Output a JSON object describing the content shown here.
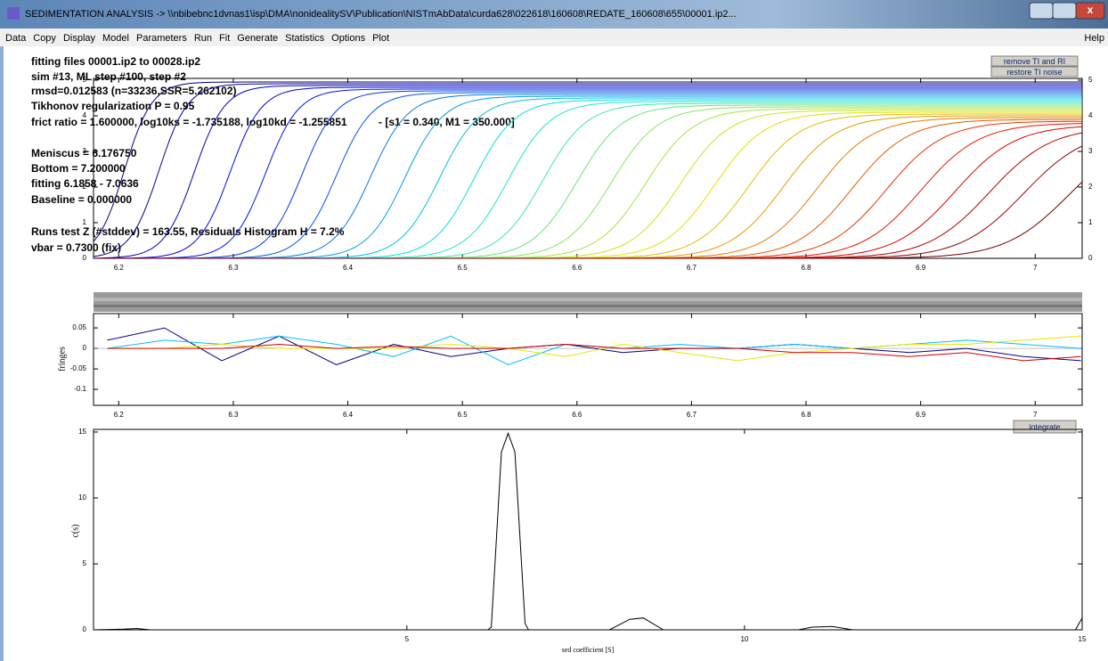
{
  "window": {
    "title": "SEDIMENTATION ANALYSIS -> \\\\nbibebnc1dvnas1\\isp\\DMA\\nonidealitySV\\Publication\\NISTmAbData\\curda628\\022618\\160608\\REDATE_160608\\655\\00001.ip2...",
    "menu": [
      "Data",
      "Copy",
      "Display",
      "Model",
      "Parameters",
      "Run",
      "Fit",
      "Generate",
      "Statistics",
      "Options",
      "Plot"
    ],
    "help": "Help"
  },
  "info": [
    "fitting files 00001.ip2 to 00028.ip2",
    "sim #13, ML step #100, step #2",
    "rmsd=0.012583 (n=33236,SSR=5.262102)",
    "Tikhonov regularization P = 0.95",
    "frict ratio = 1.600000, log10ks = -1.735188, log10kd = -1.255851",
    "- [s1 = 0.340, M1 = 350.000]",
    "Meniscus = 6.176750",
    "Bottom = 7.200000",
    "fitting 6.1858 - 7.0636",
    "Baseline = 0.000000",
    "Runs test Z (#stddev) = 163.55, Residuals Histogram H = 7.2%",
    "vbar = 0.7300 (fix)"
  ],
  "buttons": [
    "remove TI and RI",
    "restore TI noise",
    "integrate"
  ],
  "data_plot": {
    "type": "line",
    "colormap": "jet",
    "xlim": [
      6.178,
      7.041
    ],
    "ylim": [
      0,
      5.05
    ],
    "xticks": [
      6.2,
      6.3,
      6.4,
      6.5,
      6.6,
      6.7,
      6.8,
      6.9,
      7
    ],
    "yticks": [
      0,
      1,
      2,
      3,
      4,
      5
    ],
    "midpoints": [
      6.205,
      6.235,
      6.266,
      6.297,
      6.328,
      6.36,
      6.39,
      6.42,
      6.45,
      6.48,
      6.51,
      6.54,
      6.57,
      6.6,
      6.63,
      6.66,
      6.69,
      6.72,
      6.75,
      6.78,
      6.81,
      6.84,
      6.87,
      6.9,
      6.93,
      6.96,
      6.99,
      7.03
    ],
    "plateaus": [
      4.95,
      4.9,
      4.85,
      4.8,
      4.75,
      4.7,
      4.65,
      4.6,
      4.55,
      4.5,
      4.45,
      4.4,
      4.35,
      4.3,
      4.25,
      4.2,
      4.15,
      4.1,
      4.05,
      4,
      3.95,
      3.9,
      3.85,
      3.8,
      3.75,
      3.7,
      3.65,
      3.6
    ]
  },
  "residuals_plot": {
    "type": "line",
    "ylabel": "fringes",
    "xlim": [
      6.178,
      7.041
    ],
    "ylim": [
      -0.139,
      0.085
    ],
    "xticks": [
      6.2,
      6.3,
      6.4,
      6.5,
      6.6,
      6.7,
      6.8,
      6.9,
      7
    ],
    "yticks": [
      0.05,
      0,
      -0.05,
      -0.1
    ],
    "x": [
      6.19,
      6.24,
      6.29,
      6.34,
      6.39,
      6.44,
      6.49,
      6.54,
      6.59,
      6.64,
      6.69,
      6.74,
      6.79,
      6.84,
      6.89,
      6.94,
      6.99,
      7.04
    ],
    "series": [
      {
        "color": "#00008b",
        "values": [
          0.02,
          0.05,
          -0.03,
          0.03,
          -0.04,
          0.01,
          -0.02,
          0,
          0.01,
          -0.01,
          0,
          0,
          0.01,
          0,
          -0.01,
          0,
          -0.02,
          -0.03
        ]
      },
      {
        "color": "#00bfff",
        "values": [
          0,
          0.02,
          0.01,
          0.03,
          0.01,
          -0.02,
          0.03,
          -0.04,
          0.01,
          0,
          0.01,
          0,
          0.01,
          0,
          0.01,
          0.02,
          0.01,
          0
        ]
      },
      {
        "color": "#e6e600",
        "values": [
          0,
          0,
          0.01,
          0,
          0,
          0,
          0.01,
          0,
          -0.02,
          0.01,
          -0.01,
          -0.03,
          -0.01,
          0,
          0.01,
          0.01,
          0.02,
          0.03
        ]
      },
      {
        "color": "#d00000",
        "values": [
          0,
          0,
          0,
          0.01,
          0,
          0.005,
          0,
          0,
          0.01,
          0,
          0,
          0,
          -0.01,
          -0.01,
          -0.02,
          -0.01,
          -0.03,
          -0.02
        ]
      }
    ]
  },
  "distribution_plot": {
    "type": "line",
    "color": "#000000",
    "xlabel": "sed coefficient [S]",
    "ylabel": "c(s)",
    "xlim": [
      0.36,
      15
    ],
    "ylim": [
      0,
      15.2
    ],
    "xticks": [
      5,
      10,
      15
    ],
    "yticks": [
      0,
      5,
      10,
      15
    ],
    "x": [
      0.36,
      0.8,
      1,
      1.2,
      6.2,
      6.25,
      6.4,
      6.5,
      6.6,
      6.75,
      6.8,
      8,
      8.3,
      8.5,
      8.8,
      10.8,
      11,
      11.3,
      11.6,
      14.9,
      15
    ],
    "y": [
      0,
      0.05,
      0.1,
      0,
      0,
      0.2,
      13.5,
      14.9,
      13.5,
      0.5,
      0,
      0,
      0.8,
      0.9,
      0,
      0,
      0.2,
      0.25,
      0,
      0,
      0.9
    ]
  }
}
